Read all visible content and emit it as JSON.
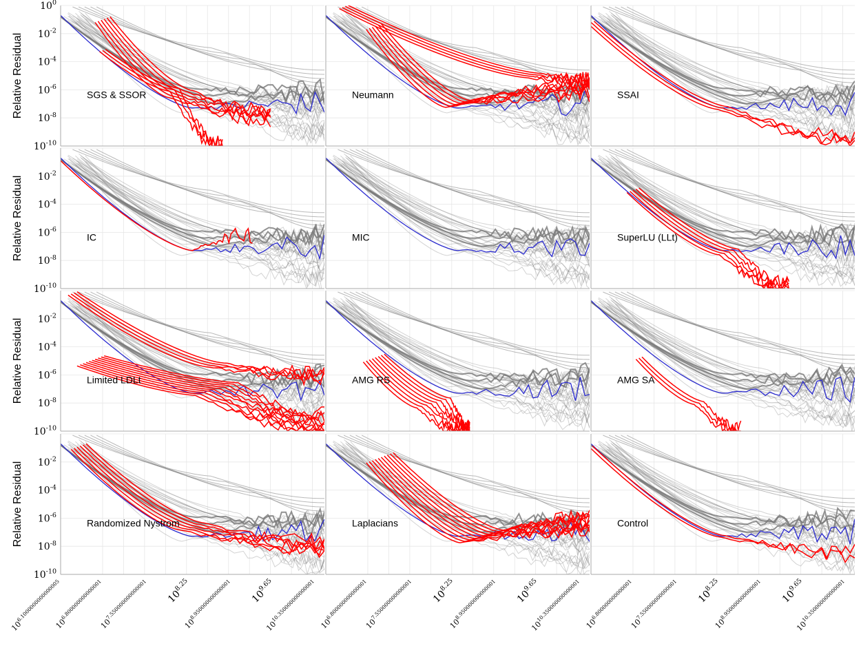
{
  "figure": {
    "ylabel": "Relative Residual",
    "y_tick_labels": [
      "10^0",
      "10^-2",
      "10^-4",
      "10^-6",
      "10^-8",
      "10^-10"
    ],
    "x_tick_labels_left": [
      "10^6.1000000000000005",
      "10^6.800000000000001",
      "10^7.550000000000001",
      "10^8.25",
      "10^8.950000000000001",
      "10^9.65",
      "10^10.350000000000001"
    ],
    "x_tick_labels_mid": [
      "10^6.800000000000001",
      "10^7.550000000000001",
      "10^8.25",
      "10^8.950000000000001",
      "10^9.65",
      "10^10.350000000000001"
    ],
    "x_tick_labels_right": [
      "10^6.800000000000001",
      "10^7.550000000000001",
      "10^8.25",
      "10^8.950000000000001",
      "10^9.65",
      "10^10.350000000000001"
    ]
  },
  "colors": {
    "highlight": "#ff0000",
    "reference": "#2b2bd0",
    "background_series": "#808080",
    "grid": "#e6e6e6"
  },
  "chart_data": {
    "type": "line",
    "grid": true,
    "y_scale": "log",
    "ylim": [
      1e-10,
      1
    ],
    "x_scale": "log",
    "xlim_log10": [
      6.1,
      10.5
    ],
    "layout": "4 rows x 3 columns",
    "panels": [
      {
        "label": "SGS & SSOR",
        "highlight": [
          {
            "start": [
              6.8,
              -1.0
            ],
            "knee": [
              8.1,
              -6.3
            ],
            "end": [
              9.6,
              -7.8
            ],
            "count": 6
          },
          {
            "start": [
              6.8,
              -3.2
            ],
            "knee": [
              8.0,
              -6.0
            ],
            "end": [
              8.8,
              -10.0
            ],
            "count": 3
          }
        ]
      },
      {
        "label": "Neumann",
        "highlight": [
          {
            "start": [
              6.4,
              -0.1
            ],
            "knee": [
              9.6,
              -5.0
            ],
            "end": [
              10.5,
              -5.4
            ],
            "count": 4
          },
          {
            "start": [
              6.9,
              -1.5
            ],
            "knee": [
              8.3,
              -7.0
            ],
            "end": [
              10.5,
              -6.0
            ],
            "count": 6
          }
        ]
      },
      {
        "label": "SSAI",
        "highlight": [
          {
            "start": [
              6.1,
              -1.2
            ],
            "knee": [
              8.3,
              -7.3
            ],
            "end": [
              10.5,
              -9.5
            ],
            "count": 3
          }
        ]
      },
      {
        "label": "IC",
        "highlight": [
          {
            "start": [
              6.1,
              -0.9
            ],
            "knee": [
              8.3,
              -7.3
            ],
            "end": [
              9.3,
              -6.1
            ],
            "count": 1
          }
        ]
      },
      {
        "label": "MIC",
        "highlight": []
      },
      {
        "label": "SuperLU (LLt)",
        "highlight": [
          {
            "start": [
              6.8,
              -3.0
            ],
            "knee": [
              8.4,
              -7.4
            ],
            "end": [
              9.4,
              -10.0
            ],
            "count": 5
          }
        ]
      },
      {
        "label": "Limited LDLt",
        "highlight": [
          {
            "start": [
              6.3,
              -0.2
            ],
            "knee": [
              8.7,
              -5.3
            ],
            "end": [
              10.5,
              -6.0
            ],
            "count": 4
          },
          {
            "start": [
              6.6,
              -5.0
            ],
            "knee": [
              8.7,
              -7.0
            ],
            "end": [
              10.5,
              -9.5
            ],
            "count": 10
          }
        ]
      },
      {
        "label": "AMG RS",
        "highlight": [
          {
            "start": [
              6.9,
              -4.8
            ],
            "knee": [
              7.9,
              -8.0
            ],
            "end": [
              8.5,
              -10.0
            ],
            "count": 8
          }
        ]
      },
      {
        "label": "AMG SA",
        "highlight": [
          {
            "start": [
              6.9,
              -4.8
            ],
            "knee": [
              7.9,
              -8.0
            ],
            "end": [
              8.6,
              -10.0
            ],
            "count": 3
          }
        ]
      },
      {
        "label": "Randomized Nystrom",
        "highlight": [
          {
            "start": [
              6.4,
              -0.9
            ],
            "knee": [
              8.3,
              -6.6
            ],
            "end": [
              10.5,
              -8.0
            ],
            "count": 6
          }
        ]
      },
      {
        "label": "Laplacians",
        "highlight": [
          {
            "start": [
              7.0,
              -1.7
            ],
            "knee": [
              8.7,
              -7.3
            ],
            "end": [
              10.5,
              -6.4
            ],
            "count": 10
          }
        ]
      },
      {
        "label": "Control",
        "highlight": [
          {
            "start": [
              6.1,
              -0.9
            ],
            "knee": [
              8.3,
              -7.3
            ],
            "end": [
              10.5,
              -8.5
            ],
            "count": 2
          }
        ]
      }
    ]
  }
}
